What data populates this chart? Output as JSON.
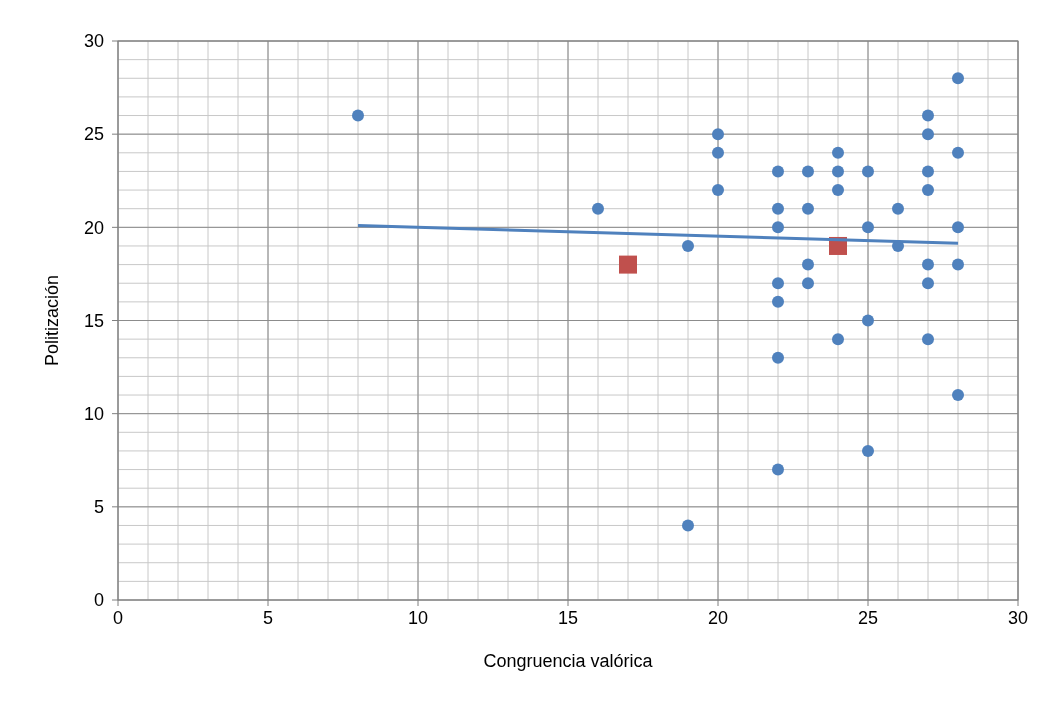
{
  "chart_data": {
    "type": "scatter",
    "xlabel": "Congruencia valórica",
    "ylabel": "Politización",
    "xlim": [
      0,
      30
    ],
    "ylim": [
      0,
      30
    ],
    "xticks": [
      0,
      5,
      10,
      15,
      20,
      25,
      30
    ],
    "yticks": [
      0,
      5,
      10,
      15,
      20,
      25,
      30
    ],
    "grid": true,
    "marker": "circle",
    "series": [
      {
        "color": "#4f81bd",
        "x": [
          8,
          16,
          19,
          19,
          20,
          20,
          20,
          22,
          22,
          22,
          22,
          22,
          22,
          22,
          23,
          23,
          23,
          23,
          24,
          24,
          24,
          24,
          25,
          25,
          25,
          25,
          26,
          26,
          27,
          27,
          27,
          27,
          27,
          27,
          27,
          28,
          28,
          28,
          28,
          28
        ],
        "values": [
          26,
          21,
          19,
          4,
          25,
          24,
          22,
          23,
          21,
          20,
          17,
          16,
          13,
          7,
          23,
          21,
          18,
          17,
          24,
          23,
          22,
          14,
          23,
          20,
          15,
          8,
          21,
          19,
          26,
          25,
          23,
          22,
          18,
          17,
          14,
          28,
          24,
          20,
          18,
          11
        ]
      },
      {
        "color": "#c0504d",
        "marker": "square",
        "x": [
          17,
          24
        ],
        "values": [
          18,
          19
        ]
      },
      {
        "type": "line",
        "color": "#4f81bd",
        "marker": "none",
        "x": [
          8,
          28
        ],
        "values": [
          20.1,
          19.15
        ]
      }
    ]
  }
}
